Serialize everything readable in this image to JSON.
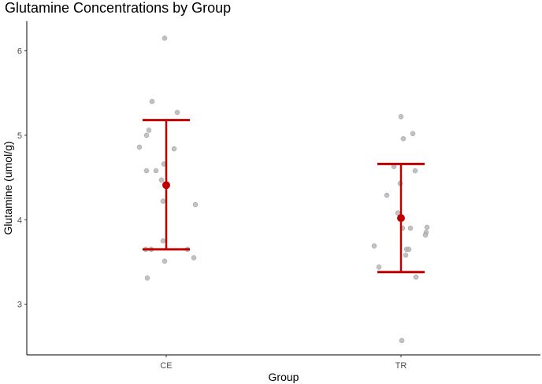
{
  "chart_data": {
    "type": "scatter",
    "title": "Glutamine Concentrations by Group",
    "xlabel": "Group",
    "ylabel": "Glutamine (umol/g)",
    "categories": [
      "CE",
      "TR"
    ],
    "ylim": [
      2.4,
      6.35
    ],
    "yticks": [
      3,
      4,
      5,
      6
    ],
    "grid": false,
    "legend": "none",
    "colors": {
      "points": "#b3b3b3",
      "summary": "#c00000",
      "axis": "#000000"
    },
    "points": [
      {
        "group": "CE",
        "jitter": -0.02,
        "y": 6.15
      },
      {
        "group": "CE",
        "jitter": -0.18,
        "y": 5.4
      },
      {
        "group": "CE",
        "jitter": 0.14,
        "y": 5.27
      },
      {
        "group": "CE",
        "jitter": -0.22,
        "y": 5.06
      },
      {
        "group": "CE",
        "jitter": -0.25,
        "y": 5.0
      },
      {
        "group": "CE",
        "jitter": -0.34,
        "y": 4.86
      },
      {
        "group": "CE",
        "jitter": 0.1,
        "y": 4.84
      },
      {
        "group": "CE",
        "jitter": -0.03,
        "y": 4.66
      },
      {
        "group": "CE",
        "jitter": -0.25,
        "y": 4.58
      },
      {
        "group": "CE",
        "jitter": -0.13,
        "y": 4.58
      },
      {
        "group": "CE",
        "jitter": -0.06,
        "y": 4.47
      },
      {
        "group": "CE",
        "jitter": -0.04,
        "y": 4.22
      },
      {
        "group": "CE",
        "jitter": 0.37,
        "y": 4.18
      },
      {
        "group": "CE",
        "jitter": -0.04,
        "y": 3.75
      },
      {
        "group": "CE",
        "jitter": 0.27,
        "y": 3.65
      },
      {
        "group": "CE",
        "jitter": -0.26,
        "y": 3.65
      },
      {
        "group": "CE",
        "jitter": -0.19,
        "y": 3.65
      },
      {
        "group": "CE",
        "jitter": 0.35,
        "y": 3.55
      },
      {
        "group": "CE",
        "jitter": -0.02,
        "y": 3.51
      },
      {
        "group": "CE",
        "jitter": -0.24,
        "y": 3.31
      },
      {
        "group": "TR",
        "jitter": 0.0,
        "y": 5.22
      },
      {
        "group": "TR",
        "jitter": 0.15,
        "y": 5.02
      },
      {
        "group": "TR",
        "jitter": 0.03,
        "y": 4.96
      },
      {
        "group": "TR",
        "jitter": -0.09,
        "y": 4.63
      },
      {
        "group": "TR",
        "jitter": 0.18,
        "y": 4.58
      },
      {
        "group": "TR",
        "jitter": -0.01,
        "y": 4.43
      },
      {
        "group": "TR",
        "jitter": -0.18,
        "y": 4.29
      },
      {
        "group": "TR",
        "jitter": -0.04,
        "y": 4.08
      },
      {
        "group": "TR",
        "jitter": 0.33,
        "y": 3.91
      },
      {
        "group": "TR",
        "jitter": 0.12,
        "y": 3.9
      },
      {
        "group": "TR",
        "jitter": 0.02,
        "y": 3.9
      },
      {
        "group": "TR",
        "jitter": 0.32,
        "y": 3.85
      },
      {
        "group": "TR",
        "jitter": 0.31,
        "y": 3.82
      },
      {
        "group": "TR",
        "jitter": -0.34,
        "y": 3.69
      },
      {
        "group": "TR",
        "jitter": 0.07,
        "y": 3.65
      },
      {
        "group": "TR",
        "jitter": 0.1,
        "y": 3.65
      },
      {
        "group": "TR",
        "jitter": 0.06,
        "y": 3.58
      },
      {
        "group": "TR",
        "jitter": -0.28,
        "y": 3.44
      },
      {
        "group": "TR",
        "jitter": 0.19,
        "y": 3.32
      },
      {
        "group": "TR",
        "jitter": 0.01,
        "y": 2.57
      }
    ],
    "summary": [
      {
        "group": "CE",
        "mean": 4.41,
        "lower": 3.65,
        "upper": 5.18
      },
      {
        "group": "TR",
        "mean": 4.02,
        "lower": 3.38,
        "upper": 4.66
      }
    ]
  }
}
